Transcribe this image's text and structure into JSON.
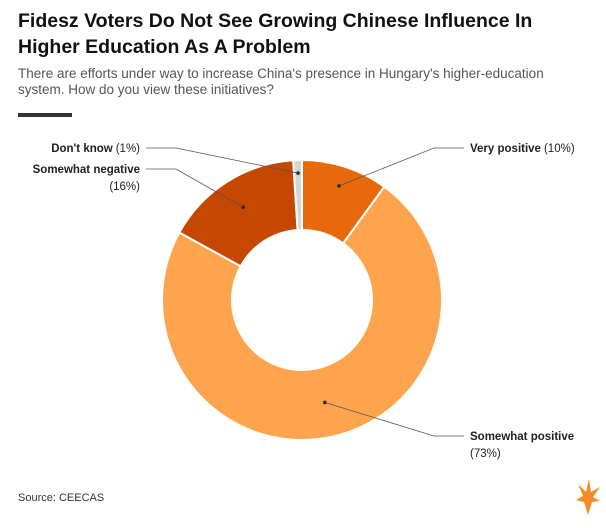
{
  "title": "Fidesz Voters Do Not See Growing Chinese Influence In Higher Education As A Problem",
  "subtitle": "There are efforts under way to increase China's presence in Hungary's higher-education system. How do you view these initiatives?",
  "source": "Source: CEECAS",
  "logo_icon": "flame-logo-icon",
  "chart_data": {
    "type": "pie",
    "style": "donut",
    "categories": [
      "Very positive",
      "Somewhat positive",
      "Somewhat negative",
      "Don't know"
    ],
    "values": [
      10,
      73,
      16,
      1
    ],
    "value_labels": [
      "(10%)",
      "(73%)",
      "(16%)",
      "(1%)"
    ],
    "colors": [
      "#e8690b",
      "#fda44c",
      "#c54700",
      "#d5d5d5"
    ],
    "legend": "none",
    "labels_placement": "outside-with-leader-lines"
  }
}
